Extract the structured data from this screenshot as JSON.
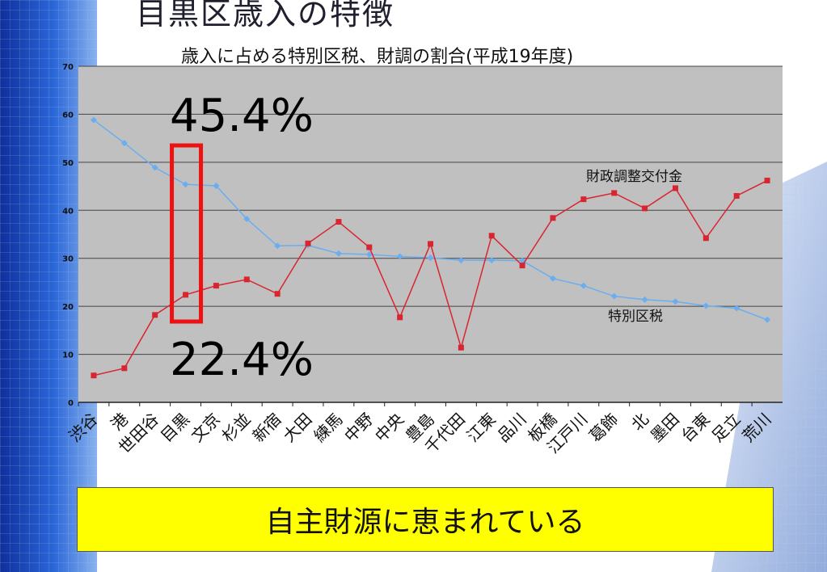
{
  "slide": {
    "title": "目黒区歳入の特徴",
    "subtitle": "歳入に占める特別区税、財調の割合(平成19年度)",
    "conclusion": "自主財源に恵まれている"
  },
  "colors": {
    "plot_bg": "#c0c0c0",
    "grid": "#444444",
    "tokubetsu_series": "#6aaef0",
    "zaisei_series": "#d9252f",
    "highlight_box": "#ee1111",
    "conclusion_bg": "#ffff00",
    "left_bar": "#1e52c8"
  },
  "chart_data": {
    "type": "line",
    "title": "歳入に占める特別区税、財調の割合(平成19年度)",
    "categories": [
      "渋谷",
      "港",
      "世田谷",
      "目黒",
      "文京",
      "杉並",
      "新宿",
      "大田",
      "練馬",
      "中野",
      "中央",
      "豊島",
      "千代田",
      "江東",
      "品川",
      "板橋",
      "江戸川",
      "葛飾",
      "北",
      "墨田",
      "台東",
      "足立",
      "荒川"
    ],
    "ylim": [
      0,
      70
    ],
    "yticks": [
      0,
      10,
      20,
      30,
      40,
      50,
      60,
      70
    ],
    "grid": true,
    "series": [
      {
        "name": "特別区税",
        "color": "#6aaef0",
        "marker": "diamond",
        "values": [
          58.8,
          54.0,
          48.9,
          45.4,
          45.1,
          38.2,
          32.6,
          32.7,
          31.0,
          30.8,
          30.4,
          30.1,
          29.6,
          29.6,
          29.5,
          25.8,
          24.3,
          22.1,
          21.4,
          21.0,
          20.1,
          19.6,
          17.2
        ]
      },
      {
        "name": "財政調整交付金",
        "color": "#d9252f",
        "marker": "square",
        "values": [
          5.6,
          7.1,
          18.2,
          22.4,
          24.3,
          25.6,
          22.6,
          33.1,
          37.6,
          32.3,
          17.7,
          33.0,
          11.4,
          34.7,
          28.5,
          38.4,
          42.3,
          43.6,
          40.4,
          44.6,
          34.2,
          43.0,
          46.2
        ]
      }
    ],
    "annotations": [
      {
        "text": "45.4%",
        "category": "目黒",
        "series": "特別区税"
      },
      {
        "text": "22.4%",
        "category": "目黒",
        "series": "財政調整交付金"
      }
    ]
  }
}
